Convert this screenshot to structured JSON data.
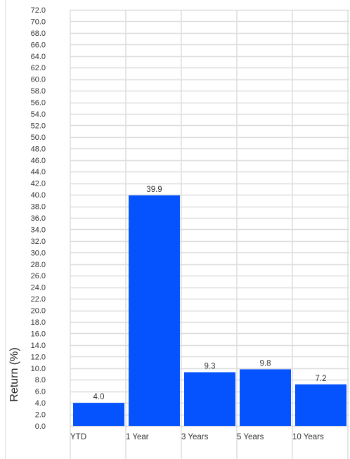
{
  "chart_data": {
    "type": "bar",
    "title": "",
    "xlabel": "",
    "ylabel": "Return (%)",
    "categories": [
      "YTD",
      "1 Year",
      "3 Years",
      "5 Years",
      "10 Years"
    ],
    "values": [
      4.0,
      39.9,
      9.3,
      9.8,
      7.2
    ],
    "data_labels": [
      "4.0",
      "39.9",
      "9.3",
      "9.8",
      "7.2"
    ],
    "ylim": [
      0,
      72
    ],
    "ytick_step": 2,
    "grid": true,
    "legend": "none",
    "bar_color": "#0552FF",
    "grid_color": "#DDDDDD"
  }
}
